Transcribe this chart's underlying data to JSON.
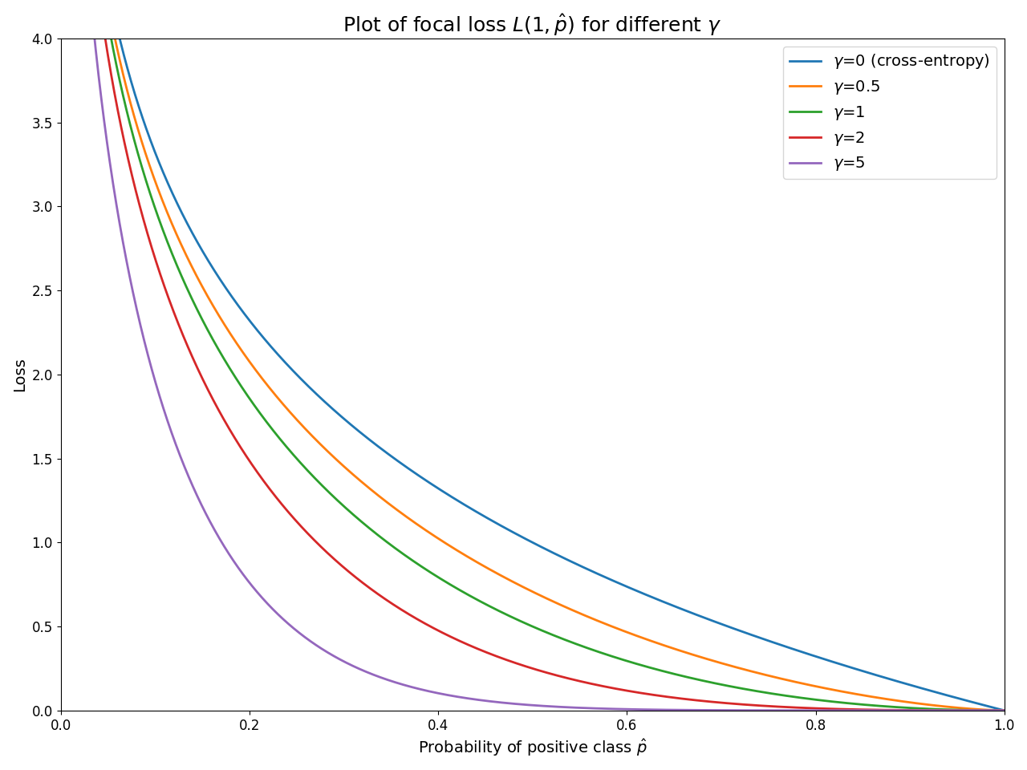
{
  "title": "Plot of focal loss $L(1, \\hat{p})$ for different $\\gamma$",
  "xlabel": "Probability of positive class $\\hat{p}$",
  "ylabel": "Loss",
  "xlim": [
    0.0,
    1.0
  ],
  "ylim": [
    0.0,
    4.0
  ],
  "gammas": [
    0,
    0.5,
    1,
    2,
    5
  ],
  "colors": [
    "#1f77b4",
    "#ff7f0e",
    "#2ca02c",
    "#d62728",
    "#9467bd"
  ],
  "labels": [
    "$\\gamma$=0 (cross-entropy)",
    "$\\gamma$=0.5",
    "$\\gamma$=1",
    "$\\gamma$=2",
    "$\\gamma$=5"
  ],
  "linewidth": 2.0,
  "n_points": 2000,
  "p_min": 1e-06,
  "p_max": 1.0,
  "legend_loc": "upper right",
  "title_fontsize": 18,
  "label_fontsize": 14,
  "legend_fontsize": 14,
  "tick_fontsize": 12
}
